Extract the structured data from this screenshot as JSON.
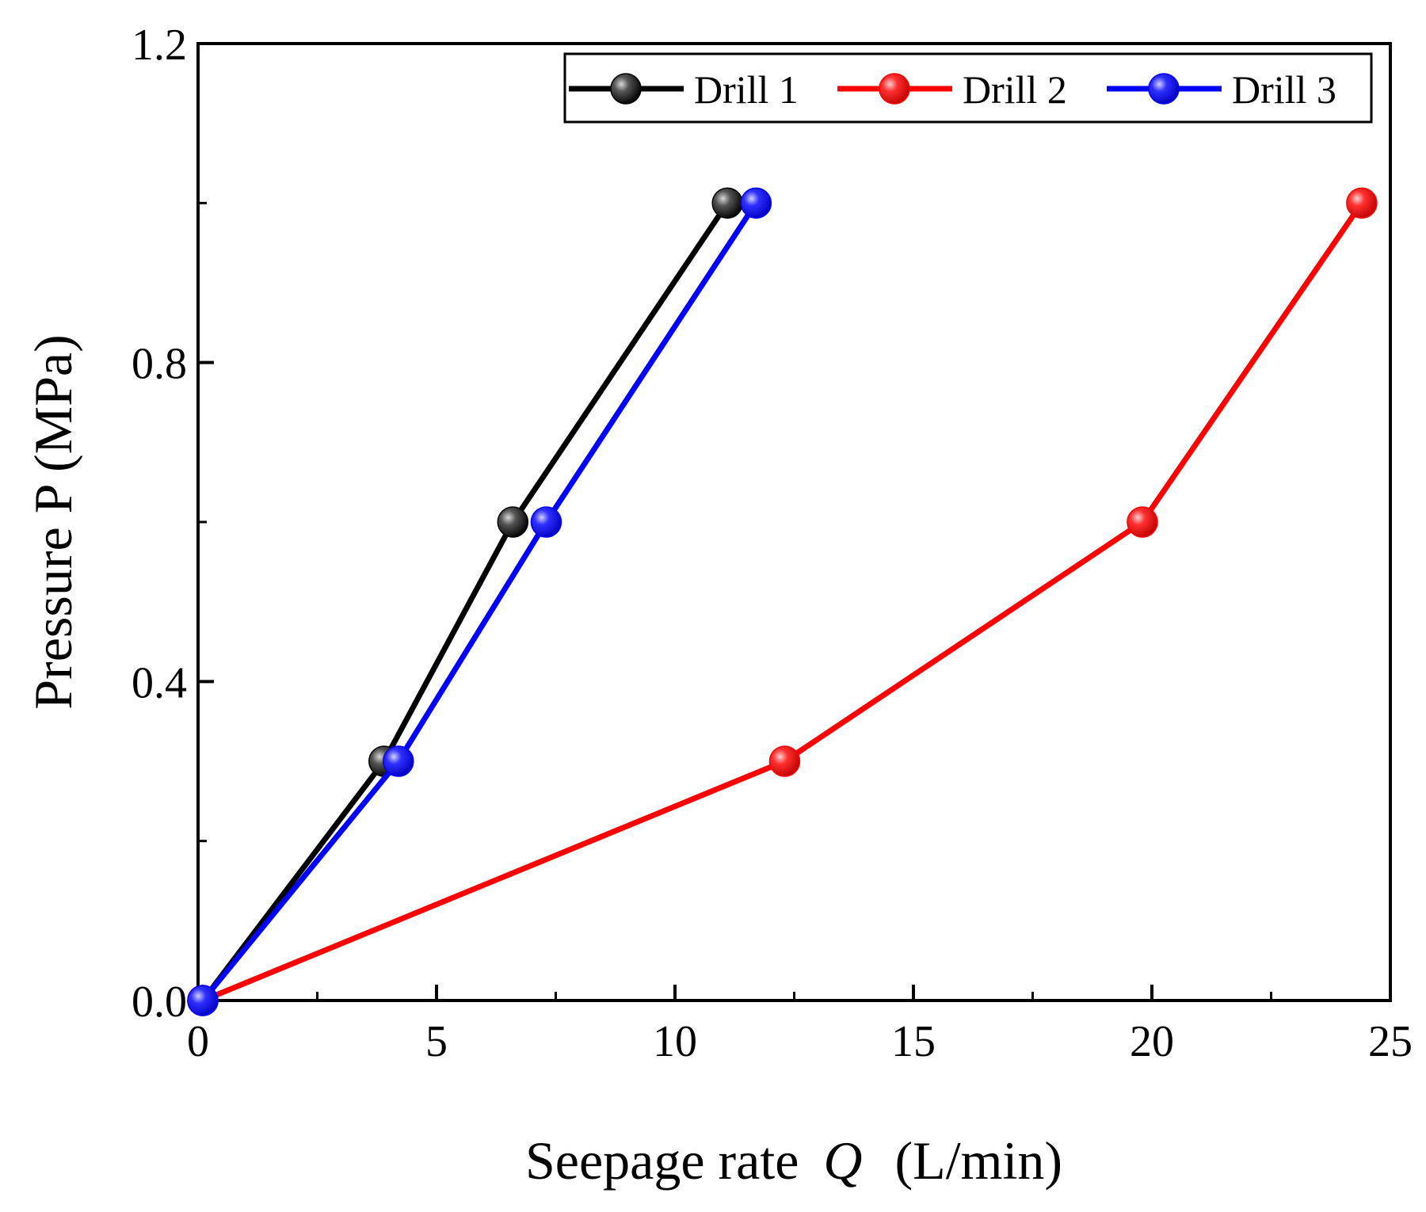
{
  "chart_data": {
    "type": "line",
    "title": "",
    "xlabel": "Seepage rate",
    "xlabel_symbol": "Q",
    "xlabel_unit": "(L/min)",
    "ylabel": "Pressure P (MPa)",
    "xlim": [
      0,
      25
    ],
    "ylim": [
      0,
      1.2
    ],
    "x_ticks": [
      "0",
      "5",
      "10",
      "15",
      "20",
      "25"
    ],
    "y_ticks": [
      "0.0",
      "0.4",
      "0.8",
      "1.2"
    ],
    "x_tick_values": [
      0,
      5,
      10,
      15,
      20,
      25
    ],
    "y_tick_values": [
      0,
      0.4,
      0.8,
      1.2
    ],
    "x_minor_ticks": [
      2.5,
      7.5,
      12.5,
      17.5,
      22.5
    ],
    "y_minor_ticks": [
      0.2,
      0.6,
      1.0
    ],
    "grid": false,
    "legend_position": "top-right",
    "series": [
      {
        "name": "Drill 1",
        "color": "#000000",
        "x": [
          0.1,
          3.9,
          6.6,
          11.1
        ],
        "y": [
          0,
          0.3,
          0.6,
          1.0
        ]
      },
      {
        "name": "Drill 2",
        "color": "#ff0000",
        "x": [
          0.1,
          12.3,
          19.8,
          24.4
        ],
        "y": [
          0,
          0.3,
          0.6,
          1.0
        ]
      },
      {
        "name": "Drill 3",
        "color": "#0000ff",
        "x": [
          0.1,
          4.2,
          7.3,
          11.7
        ],
        "y": [
          0,
          0.3,
          0.6,
          1.0
        ]
      }
    ]
  }
}
